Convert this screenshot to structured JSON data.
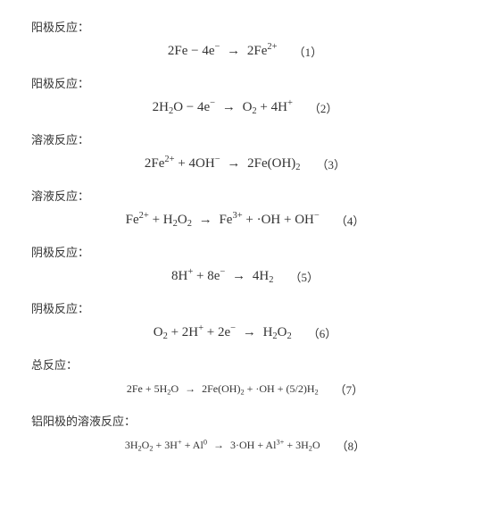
{
  "sections": [
    {
      "label": "阳极反应：",
      "equation_html": "2Fe − 4e<sup>−</sup> <span class='arrow'>→</span> 2Fe<sup>2+</sup>",
      "num": "（1）",
      "small": false
    },
    {
      "label": "阳极反应：",
      "equation_html": "2H<sub>2</sub>O − 4e<sup>−</sup> <span class='arrow'>→</span> O<sub>2</sub> + 4H<sup>+</sup>",
      "num": "（2）",
      "small": false
    },
    {
      "label": "溶液反应：",
      "equation_html": "2Fe<sup>2+</sup> + 4OH<sup>−</sup> <span class='arrow'>→</span> 2Fe(OH)<sub>2</sub>",
      "num": "（3）",
      "small": false
    },
    {
      "label": "溶液反应：",
      "equation_html": "Fe<sup>2+</sup> + H<sub>2</sub>O<sub>2</sub> <span class='arrow'>→</span> Fe<sup>3+</sup> + ·OH + OH<sup>−</sup>",
      "num": "（4）",
      "small": false
    },
    {
      "label": "阴极反应：",
      "equation_html": "8H<sup>+</sup> + 8e<sup>−</sup> <span class='arrow'>→</span> 4H<sub>2</sub>",
      "num": "（5）",
      "small": false
    },
    {
      "label": "阴极反应：",
      "equation_html": "O<sub>2</sub> + 2H<sup>+</sup> + 2e<sup>−</sup> <span class='arrow'>→</span> H<sub>2</sub>O<sub>2</sub>",
      "num": "（6）",
      "small": false
    },
    {
      "label": "总反应：",
      "equation_html": "2Fe + 5H<sub>2</sub>O <span class='arrow'>→</span> 2Fe(OH)<sub>2</sub> + ·OH + (5/2)H<sub>2</sub>",
      "num": "（7）",
      "small": true
    },
    {
      "label": "铝阳极的溶液反应：",
      "equation_html": "3H<sub>2</sub>O<sub>2</sub> + 3H<sup>+</sup> + Al<sup>0</sup> <span class='arrow'>→</span> 3·OH + Al<sup>3+</sup> + 3H<sub>2</sub>O",
      "num": "（8）",
      "small": true
    }
  ]
}
